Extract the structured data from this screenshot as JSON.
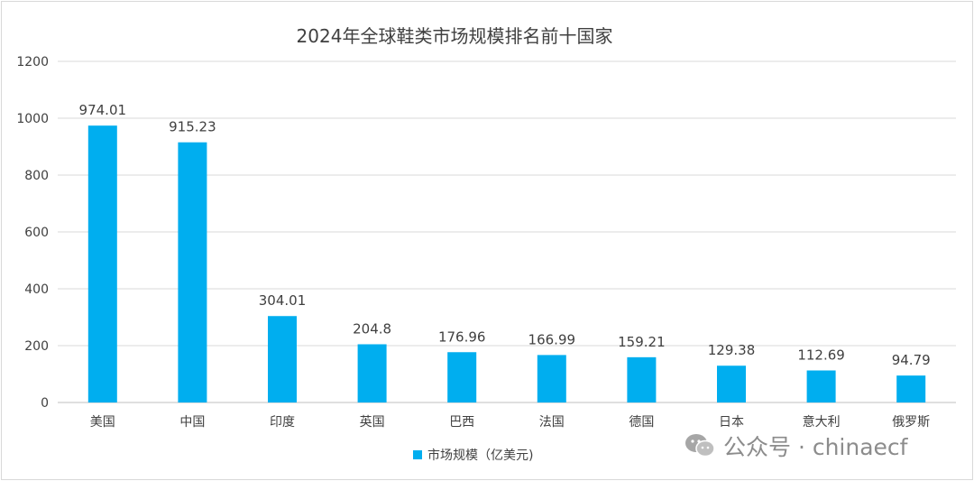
{
  "chart_data": {
    "type": "bar",
    "title": "2024年全球鞋类市场规模排名前十国家",
    "categories": [
      "美国",
      "中国",
      "印度",
      "英国",
      "巴西",
      "法国",
      "德国",
      "日本",
      "意大利",
      "俄罗斯"
    ],
    "series": [
      {
        "name": "市场规模（亿美元)",
        "values": [
          974.01,
          915.23,
          304.01,
          204.8,
          176.96,
          166.99,
          159.21,
          129.38,
          112.69,
          94.79
        ],
        "labels": [
          "974.01",
          "915.23",
          "304.01",
          "204.8",
          "176.96",
          "166.99",
          "159.21",
          "129.38",
          "112.69",
          "94.79"
        ]
      }
    ],
    "ylim": [
      0,
      1200
    ],
    "yticks": [
      0,
      200,
      400,
      600,
      800,
      1000,
      1200
    ],
    "xlabel": "",
    "ylabel": "",
    "grid": true,
    "legend": "bottom",
    "bar_color": "#00aeef"
  },
  "watermark": {
    "text": "公众号 · chinaecf"
  }
}
